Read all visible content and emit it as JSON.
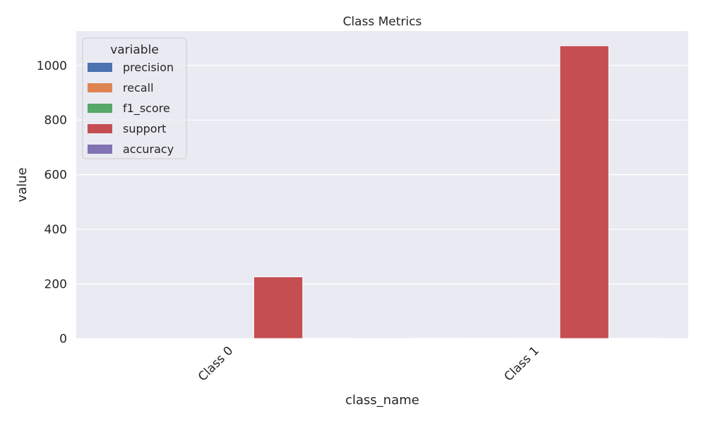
{
  "chart_data": {
    "type": "bar",
    "title": "Class Metrics",
    "xlabel": "class_name",
    "ylabel": "value",
    "categories": [
      "Class 0",
      "Class 1"
    ],
    "series": [
      {
        "name": "precision",
        "color": "#4c72b0",
        "values": [
          0.0,
          0.83
        ]
      },
      {
        "name": "recall",
        "color": "#dd8452",
        "values": [
          0.0,
          1.0
        ]
      },
      {
        "name": "f1_score",
        "color": "#55a868",
        "values": [
          0.0,
          0.91
        ]
      },
      {
        "name": "support",
        "color": "#c44e52",
        "values": [
          226,
          1072
        ]
      },
      {
        "name": "accuracy",
        "color": "#8172b3",
        "values": [
          0.83,
          0.83
        ]
      }
    ],
    "ylim": [
      0,
      1126
    ],
    "yticks": [
      0,
      200,
      400,
      600,
      800,
      1000
    ],
    "grid": true,
    "legend": {
      "title": "variable",
      "placement": "top-left"
    },
    "background_color": "#eaeaf2"
  }
}
